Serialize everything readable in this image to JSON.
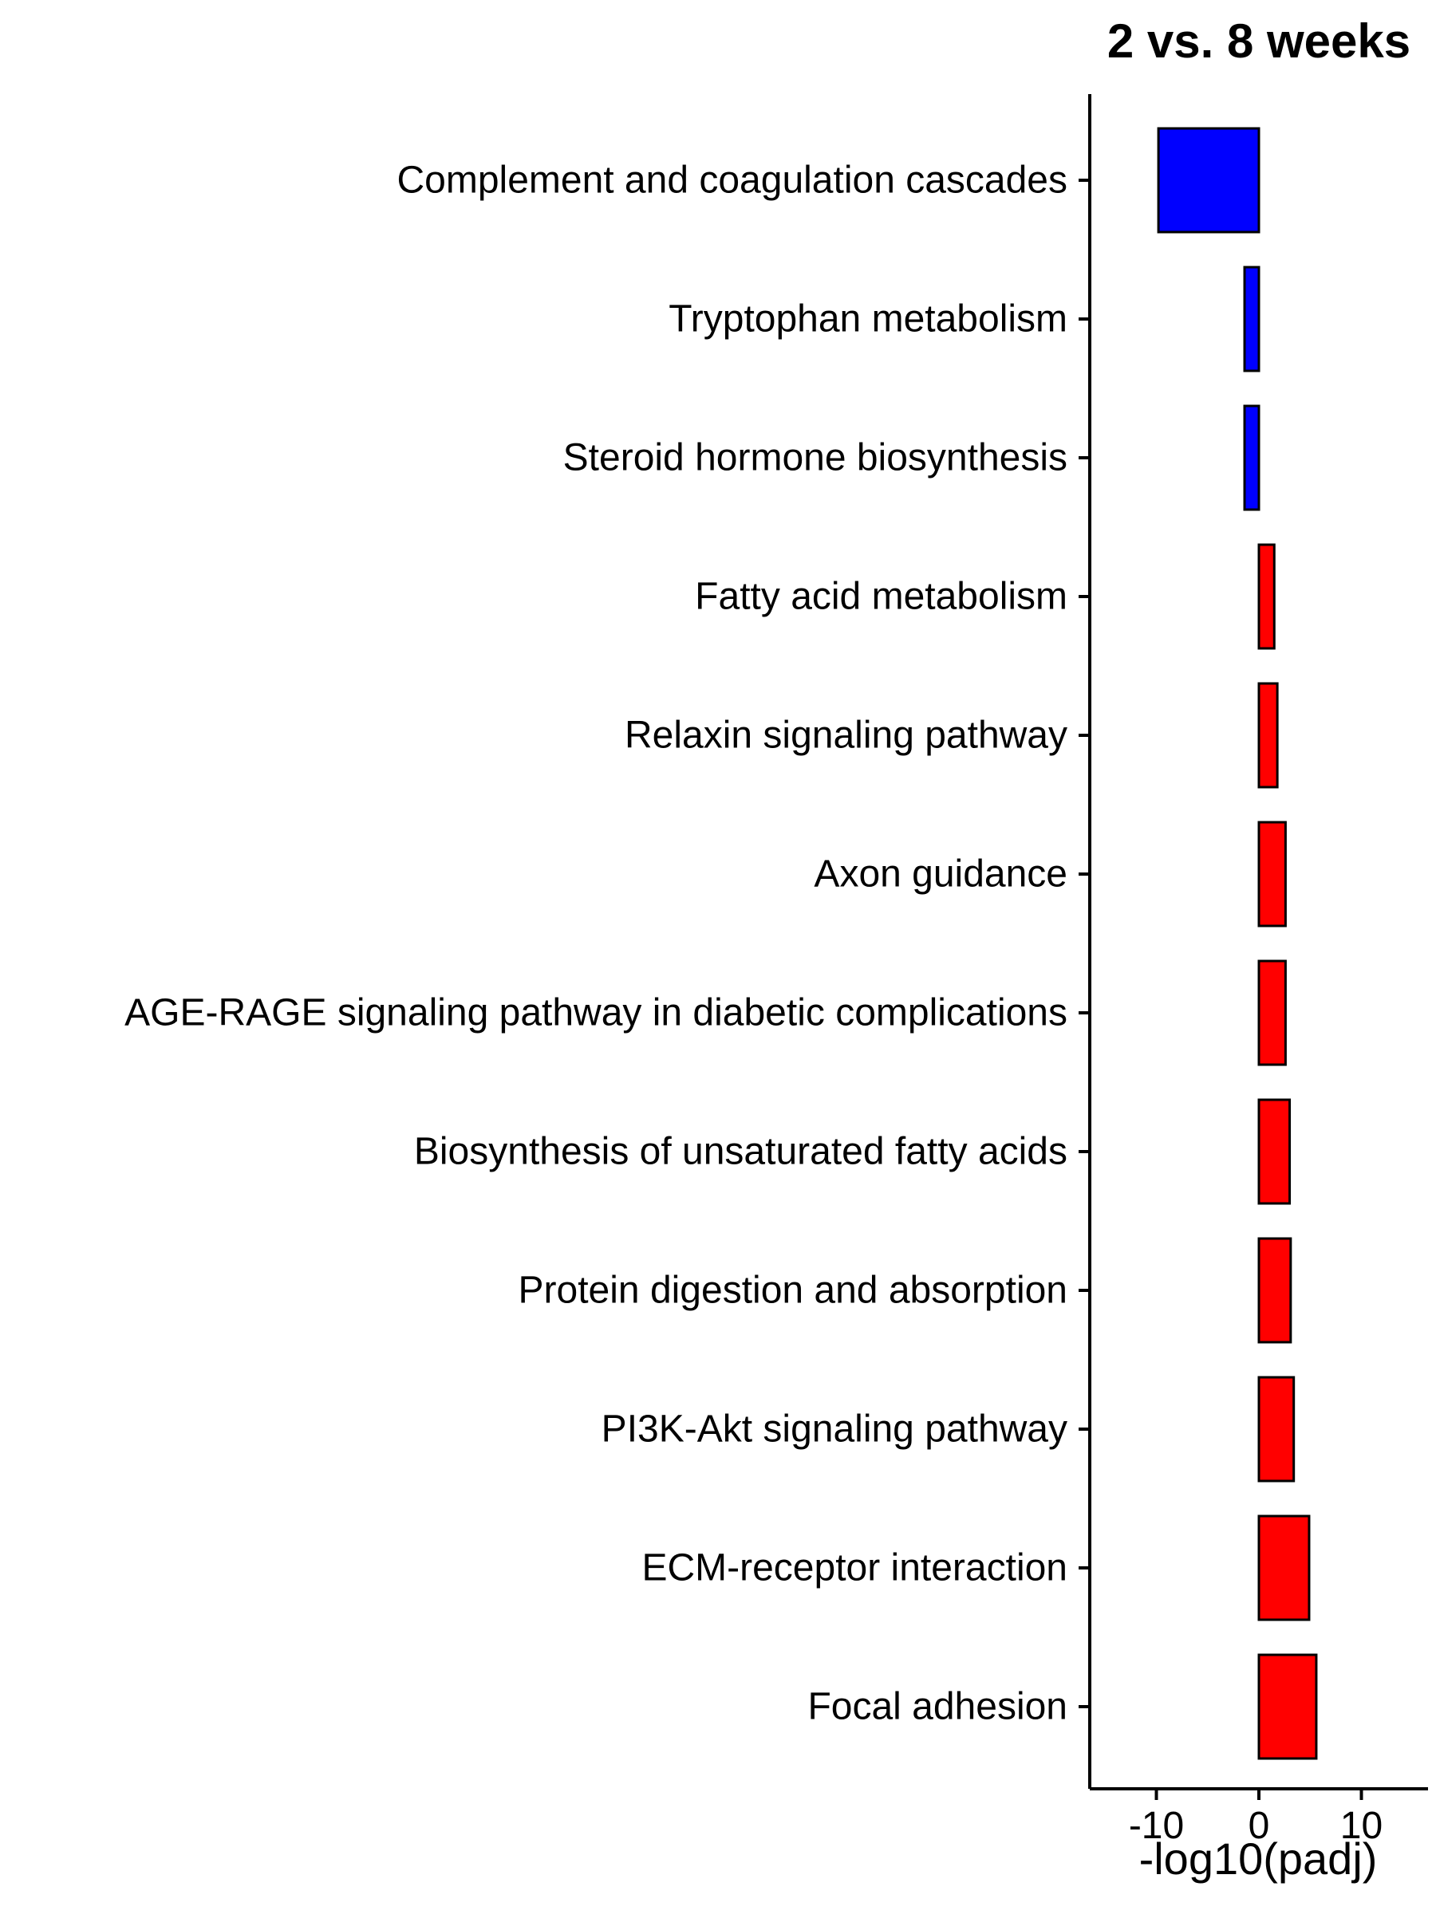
{
  "chart_data": {
    "type": "bar",
    "orientation": "horizontal",
    "title": "2 vs. 8 weeks",
    "xlabel": "-log10(padj)",
    "ylabel": "",
    "xlim": [
      -16.5,
      16.5
    ],
    "xticks": [
      -10,
      0,
      10
    ],
    "xtick_labels": [
      "-10",
      "0",
      "10"
    ],
    "grid": false,
    "legend": "none",
    "colors": {
      "negative": "#0000ff",
      "positive": "#ff0000",
      "outline": "#000000"
    },
    "categories": [
      "Complement and coagulation cascades",
      "Tryptophan metabolism",
      "Steroid hormone biosynthesis",
      "Fatty acid metabolism",
      "Relaxin signaling pathway",
      "Axon guidance",
      "AGE-RAGE signaling pathway in diabetic complications",
      "Biosynthesis of unsaturated fatty acids",
      "Protein digestion and absorption",
      "PI3K-Akt signaling pathway",
      "ECM-receptor interaction",
      "Focal adhesion"
    ],
    "values": [
      -9.8,
      -1.4,
      -1.4,
      1.5,
      1.8,
      2.6,
      2.6,
      3.0,
      3.1,
      3.4,
      4.9,
      5.6
    ]
  }
}
